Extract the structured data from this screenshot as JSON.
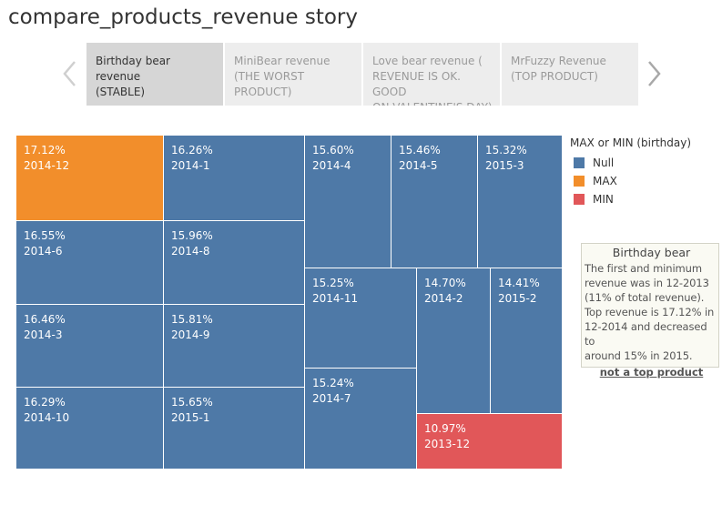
{
  "story": {
    "title": "compare_products_revenue story",
    "points": [
      {
        "lines": [
          "Birthday bear revenue",
          "(STABLE)"
        ],
        "active": true
      },
      {
        "lines": [
          "MiniBear revenue",
          "(THE WORST",
          "PRODUCT)"
        ],
        "active": false
      },
      {
        "lines": [
          "Love bear revenue (",
          "REVENUE IS OK. GOOD",
          "ON VALENTINE'S DAY)"
        ],
        "active": false
      },
      {
        "lines": [
          "MrFuzzy Revenue",
          "(TOP PRODUCT)"
        ],
        "active": false
      }
    ],
    "prev_icon": "chevron-left-icon",
    "next_icon": "chevron-right-icon"
  },
  "legend": {
    "title": "MAX or MIN (birthday)",
    "items": [
      {
        "key": "Null",
        "label": "Null",
        "color": "#4e79a7"
      },
      {
        "key": "MAX",
        "label": "MAX",
        "color": "#f28e2b"
      },
      {
        "key": "MIN",
        "label": "MIN",
        "color": "#e15759"
      }
    ]
  },
  "annotation": {
    "title": "Birthday bear",
    "body": "The first  and minimum\nrevenue was in 12-2013\n(11% of total revenue).\nTop revenue is 17.12% in\n12-2014 and decreased to\naround 15% in 2015.",
    "link": "not a top product"
  },
  "chart_data": {
    "type": "treemap",
    "value_unit": "% of total revenue",
    "items": [
      {
        "label": "2014-12",
        "value": 17.12,
        "value_label": "17.12%",
        "group": "MAX"
      },
      {
        "label": "2014-6",
        "value": 16.55,
        "value_label": "16.55%",
        "group": "Null"
      },
      {
        "label": "2014-3",
        "value": 16.46,
        "value_label": "16.46%",
        "group": "Null"
      },
      {
        "label": "2014-10",
        "value": 16.29,
        "value_label": "16.29%",
        "group": "Null"
      },
      {
        "label": "2014-1",
        "value": 16.26,
        "value_label": "16.26%",
        "group": "Null"
      },
      {
        "label": "2014-8",
        "value": 15.96,
        "value_label": "15.96%",
        "group": "Null"
      },
      {
        "label": "2014-9",
        "value": 15.81,
        "value_label": "15.81%",
        "group": "Null"
      },
      {
        "label": "2015-1",
        "value": 15.65,
        "value_label": "15.65%",
        "group": "Null"
      },
      {
        "label": "2014-4",
        "value": 15.6,
        "value_label": "15.60%",
        "group": "Null"
      },
      {
        "label": "2014-5",
        "value": 15.46,
        "value_label": "15.46%",
        "group": "Null"
      },
      {
        "label": "2015-3",
        "value": 15.32,
        "value_label": "15.32%",
        "group": "Null"
      },
      {
        "label": "2014-11",
        "value": 15.25,
        "value_label": "15.25%",
        "group": "Null"
      },
      {
        "label": "2014-7",
        "value": 15.24,
        "value_label": "15.24%",
        "group": "Null"
      },
      {
        "label": "2014-2",
        "value": 14.7,
        "value_label": "14.70%",
        "group": "Null"
      },
      {
        "label": "2015-2",
        "value": 14.41,
        "value_label": "14.41%",
        "group": "Null"
      },
      {
        "label": "2013-12",
        "value": 10.97,
        "value_label": "10.97%",
        "group": "MIN"
      }
    ]
  }
}
